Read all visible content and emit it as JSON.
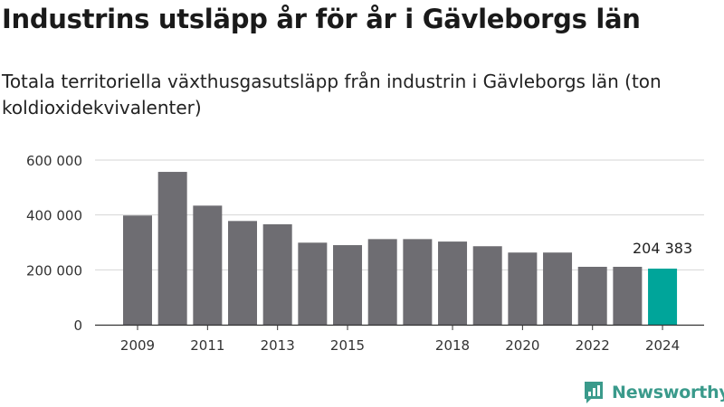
{
  "title": "Industrins utsläpp år för år i Gävleborgs län",
  "subtitle": "Totala territoriella växthusgasutsläpp från industrin i Gävleborgs län (ton koldioxidekvivalenter)",
  "brand": {
    "name": "Newsworthy",
    "icon": "newsworthy-logo-icon",
    "color": "#3a9a8b"
  },
  "chart_data": {
    "type": "bar",
    "categories": [
      "2009",
      "2010",
      "2011",
      "2012",
      "2013",
      "2014",
      "2015",
      "2016",
      "2017",
      "2018",
      "2019",
      "2020",
      "2021",
      "2022",
      "2023",
      "2024"
    ],
    "values": [
      398000,
      557000,
      434000,
      378000,
      366000,
      299000,
      290000,
      312000,
      312000,
      303000,
      286000,
      263000,
      263000,
      211000,
      211000,
      204383
    ],
    "xtick_labels": [
      "2009",
      "2011",
      "2013",
      "2015",
      "2018",
      "2020",
      "2022",
      "2024"
    ],
    "ytick_labels": [
      "600 000",
      "400 000",
      "200 000",
      "0"
    ],
    "ylim": [
      0,
      600000
    ],
    "bar_color": "#6e6d72",
    "highlight_color": "#00a59a",
    "highlight_category": "2024",
    "annotation": {
      "category": "2024",
      "label": "204 383"
    },
    "grid": true,
    "xlabel": "",
    "ylabel": ""
  }
}
